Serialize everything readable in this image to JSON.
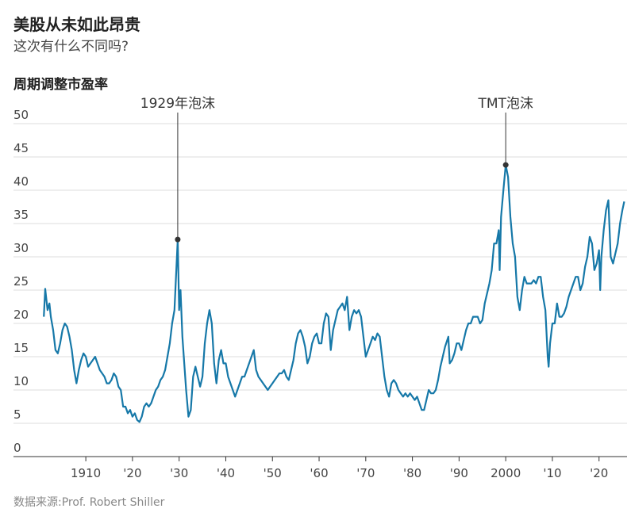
{
  "chart_data": {
    "type": "line",
    "title": "美股从未如此昂贵",
    "subtitle": "这次有什么不同吗?",
    "y_label": "周期调整市盈率",
    "source": "数据来源:Prof. Robert Shiller",
    "color": "#1678a8",
    "grid": true,
    "xlim": [
      1894.5,
      2026
    ],
    "ylim": [
      0,
      50
    ],
    "yticks": [
      0,
      5,
      10,
      15,
      20,
      25,
      30,
      35,
      40,
      45,
      50
    ],
    "xticks": [
      {
        "value": 1910,
        "label": "1910"
      },
      {
        "value": 1920,
        "label": "'20"
      },
      {
        "value": 1930,
        "label": "'30"
      },
      {
        "value": 1940,
        "label": "'40"
      },
      {
        "value": 1950,
        "label": "'50"
      },
      {
        "value": 1960,
        "label": "'60"
      },
      {
        "value": 1970,
        "label": "'70"
      },
      {
        "value": 1980,
        "label": "'80"
      },
      {
        "value": 1990,
        "label": "'90"
      },
      2000,
      {
        "value": 2010,
        "label": "'10"
      },
      {
        "value": 2020,
        "label": "'20"
      }
    ],
    "annotations": [
      {
        "text": "1929年泡沫",
        "x": 1929.7,
        "y": 32.6
      },
      {
        "text": "TMT泡沫",
        "x": 2000,
        "y": 43.8
      }
    ],
    "x": [
      1901.0,
      1901.3,
      1901.8,
      1902.2,
      1902.5,
      1903.0,
      1903.5,
      1904.0,
      1904.5,
      1905.0,
      1905.5,
      1906.0,
      1906.5,
      1907.0,
      1907.5,
      1908.0,
      1908.5,
      1909.0,
      1909.5,
      1910.0,
      1910.5,
      1911.0,
      1911.5,
      1912.0,
      1912.5,
      1913.0,
      1913.5,
      1914.0,
      1914.5,
      1915.0,
      1915.5,
      1916.0,
      1916.5,
      1917.0,
      1917.5,
      1918.0,
      1918.5,
      1919.0,
      1919.5,
      1920.0,
      1920.5,
      1921.0,
      1921.5,
      1922.0,
      1922.5,
      1923.0,
      1923.5,
      1924.0,
      1924.5,
      1925.0,
      1925.5,
      1926.0,
      1926.5,
      1927.0,
      1927.5,
      1928.0,
      1928.5,
      1929.0,
      1929.7,
      1930.0,
      1930.3,
      1930.7,
      1931.0,
      1931.5,
      1932.0,
      1932.5,
      1933.0,
      1933.5,
      1934.0,
      1934.5,
      1935.0,
      1935.5,
      1936.0,
      1936.5,
      1937.0,
      1937.5,
      1938.0,
      1938.5,
      1939.0,
      1939.5,
      1940.0,
      1940.5,
      1941.0,
      1941.5,
      1942.0,
      1942.5,
      1943.0,
      1943.5,
      1944.0,
      1944.5,
      1945.0,
      1945.5,
      1946.0,
      1946.5,
      1947.0,
      1947.5,
      1948.0,
      1948.5,
      1949.0,
      1949.5,
      1950.0,
      1950.5,
      1951.0,
      1951.5,
      1952.0,
      1952.5,
      1953.0,
      1953.5,
      1954.0,
      1954.5,
      1955.0,
      1955.5,
      1956.0,
      1956.5,
      1957.0,
      1957.5,
      1958.0,
      1958.5,
      1959.0,
      1959.5,
      1960.0,
      1960.5,
      1961.0,
      1961.5,
      1962.0,
      1962.5,
      1963.0,
      1963.5,
      1964.0,
      1964.5,
      1965.0,
      1965.5,
      1966.0,
      1966.5,
      1967.0,
      1967.5,
      1968.0,
      1968.5,
      1969.0,
      1969.5,
      1970.0,
      1970.5,
      1971.0,
      1971.5,
      1972.0,
      1972.5,
      1973.0,
      1973.5,
      1974.0,
      1974.5,
      1975.0,
      1975.5,
      1976.0,
      1976.5,
      1977.0,
      1977.5,
      1978.0,
      1978.5,
      1979.0,
      1979.5,
      1980.0,
      1980.5,
      1981.0,
      1981.5,
      1982.0,
      1982.5,
      1983.0,
      1983.5,
      1984.0,
      1984.5,
      1985.0,
      1985.5,
      1986.0,
      1986.5,
      1987.0,
      1987.7,
      1988.0,
      1988.5,
      1989.0,
      1989.5,
      1990.0,
      1990.5,
      1991.0,
      1991.5,
      1992.0,
      1992.5,
      1993.0,
      1993.5,
      1994.0,
      1994.5,
      1995.0,
      1995.5,
      1996.0,
      1996.5,
      1997.0,
      1997.5,
      1998.0,
      1998.5,
      1998.7,
      1999.0,
      1999.5,
      2000.0,
      2000.5,
      2001.0,
      2001.5,
      2002.0,
      2002.5,
      2003.0,
      2003.5,
      2004.0,
      2004.5,
      2005.0,
      2005.5,
      2006.0,
      2006.5,
      2007.0,
      2007.5,
      2008.0,
      2008.5,
      2009.0,
      2009.2,
      2009.5,
      2010.0,
      2010.5,
      2011.0,
      2011.5,
      2012.0,
      2012.5,
      2013.0,
      2013.5,
      2014.0,
      2014.5,
      2015.0,
      2015.5,
      2016.0,
      2016.5,
      2017.0,
      2017.5,
      2018.0,
      2018.5,
      2019.0,
      2019.5,
      2020.0,
      2020.25,
      2020.5,
      2021.0,
      2021.5,
      2022.0,
      2022.5,
      2023.0,
      2023.5,
      2024.0,
      2024.5,
      2025.0,
      2025.4
    ],
    "values": [
      21,
      25.2,
      22,
      23,
      21,
      19,
      16,
      15.5,
      17,
      19,
      20,
      19.5,
      18,
      16,
      13,
      11,
      13,
      14.5,
      15.5,
      15,
      13.5,
      14,
      14.5,
      15,
      14,
      13,
      12.5,
      12,
      11,
      11,
      11.5,
      12.5,
      12,
      10.5,
      10,
      7.5,
      7.5,
      6.5,
      7,
      6,
      6.5,
      5.5,
      5.2,
      6,
      7.5,
      8,
      7.5,
      8,
      9,
      10,
      10.5,
      11.5,
      12,
      13,
      15,
      17,
      20,
      22,
      32.6,
      22,
      25,
      18,
      15,
      10,
      6,
      7,
      12,
      13.5,
      12,
      10.5,
      12,
      17,
      20,
      22,
      20,
      14,
      11,
      14.5,
      16,
      14,
      14,
      12,
      11,
      10,
      9,
      10,
      11,
      12,
      12,
      13,
      14,
      15,
      16,
      13,
      12,
      11.5,
      11,
      10.5,
      10,
      10.5,
      11,
      11.5,
      12,
      12.5,
      12.5,
      13,
      12,
      11.5,
      13,
      14.5,
      17,
      18.5,
      19,
      18,
      16.5,
      14,
      15,
      17,
      18,
      18.5,
      17,
      17,
      20,
      21.5,
      21,
      16,
      19,
      20.5,
      22,
      22.5,
      23,
      22,
      24,
      19,
      21,
      22,
      21.5,
      22,
      21,
      18,
      15,
      16,
      17,
      18,
      17.5,
      18.5,
      18,
      15,
      12,
      10,
      9,
      11,
      11.5,
      11,
      10,
      9.5,
      9,
      9.5,
      9,
      9.5,
      9,
      8.5,
      9,
      8,
      7,
      7,
      8.5,
      10,
      9.5,
      9.5,
      10,
      11.5,
      13.5,
      15,
      16.5,
      18,
      14,
      14.5,
      15.5,
      17,
      17,
      16,
      17.5,
      19,
      20,
      20,
      21,
      21,
      21,
      20,
      20.5,
      23,
      24.5,
      26,
      28,
      32,
      32,
      34,
      28,
      36,
      40,
      43.8,
      42,
      36,
      32,
      30,
      24,
      22,
      25,
      27,
      26,
      26,
      26,
      26.5,
      26,
      27,
      27,
      24,
      22,
      15,
      13.5,
      17,
      20,
      20,
      23,
      21,
      21,
      21.5,
      22.5,
      24,
      25,
      26,
      27,
      27,
      25,
      26,
      28.5,
      30,
      33,
      32,
      28,
      29,
      31,
      25,
      30,
      34,
      37,
      38.5,
      30,
      29,
      30.5,
      32,
      35,
      37,
      38.3
    ]
  }
}
